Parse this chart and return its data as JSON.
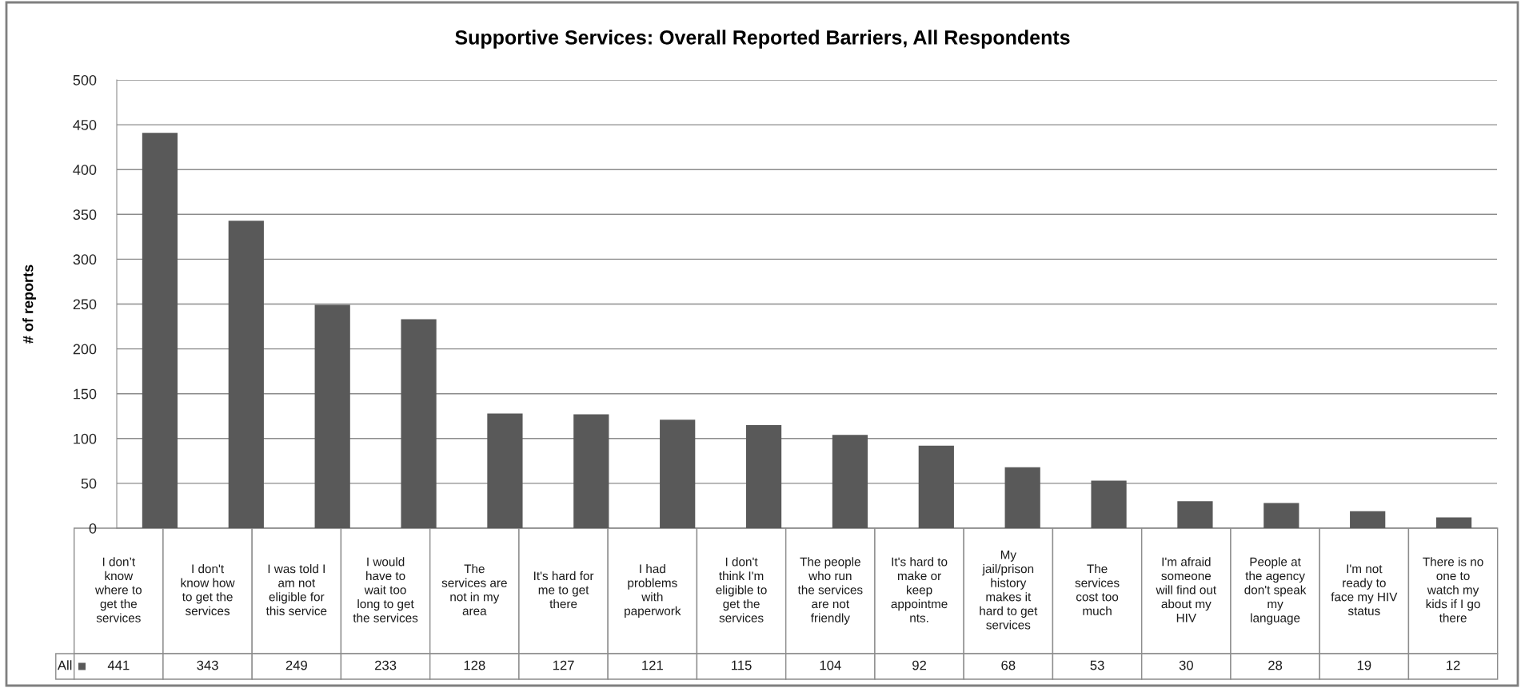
{
  "chart_data": {
    "type": "bar",
    "title": "Supportive Services: Overall Reported Barriers, All Respondents",
    "ylabel": "# of reports",
    "categories": [
      "I don’t\nknow\nwhere to\nget the\nservices",
      "I don't\nknow how\nto get the\nservices",
      "I was told I\nam not\neligible for\nthis service",
      "I would\nhave to\nwait too\nlong to get\nthe services",
      "The\nservices are\nnot in my\narea",
      "It's hard for\nme to get\nthere",
      "I had\nproblems\nwith\npaperwork",
      "I don't\nthink I'm\neligible to\nget the\nservices",
      "The people\nwho run\nthe services\nare not\nfriendly",
      "It's hard to\nmake or\nkeep\nappointme\nnts.",
      "My\njail/prison\nhistory\nmakes it\nhard to get\nservices",
      "The\nservices\ncost too\nmuch",
      "I'm afraid\nsomeone\nwill find out\nabout my\nHIV",
      "People at\nthe agency\ndon't speak\nmy\nlanguage",
      "I'm not\nready to\nface my HIV\nstatus",
      "There is no\none to\nwatch my\nkids if I go\nthere"
    ],
    "series": [
      {
        "name": "All",
        "color": "#595959",
        "values": [
          441,
          343,
          249,
          233,
          128,
          127,
          121,
          115,
          104,
          92,
          68,
          53,
          30,
          28,
          19,
          12
        ]
      }
    ],
    "ylim": [
      0,
      500
    ],
    "yticks": [
      0,
      50,
      100,
      150,
      200,
      250,
      300,
      350,
      400,
      450,
      500
    ],
    "grid": "y",
    "data_labels": true
  }
}
